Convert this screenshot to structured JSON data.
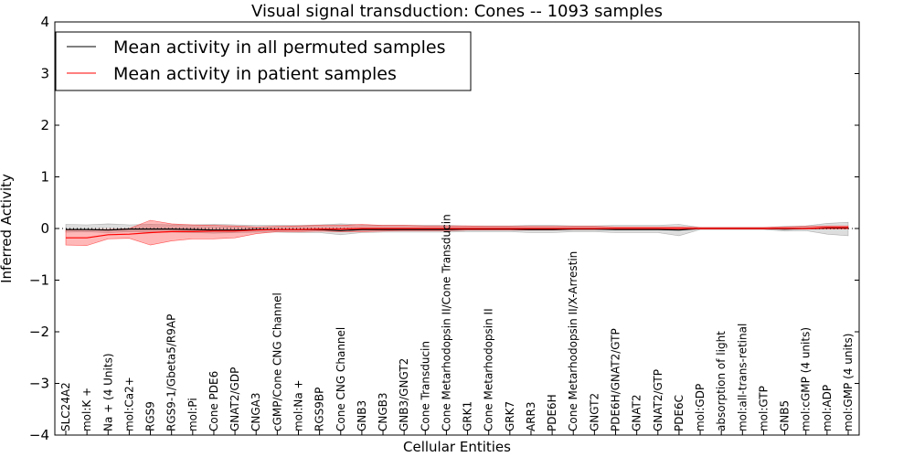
{
  "chart_data": {
    "type": "line",
    "title": "Visual signal transduction: Cones -- 1093 samples",
    "xlabel": "Cellular Entities",
    "ylabel": "Inferred Activity",
    "ylim": [
      -4,
      4
    ],
    "yticks": [
      -4,
      -3,
      -2,
      -1,
      0,
      1,
      2,
      3,
      4
    ],
    "ytick_labels": [
      "−4",
      "−3",
      "−2",
      "−1",
      "0",
      "1",
      "2",
      "3",
      "4"
    ],
    "legend_position": "top-left",
    "categories": [
      "SLC24A2",
      "mol:K +",
      "Na + (4 Units)",
      "mol:Ca2+",
      "RGS9",
      "RGS9-1/Gbeta5/R9AP",
      "mol:Pi",
      "Cone PDE6",
      "GNAT2/GDP",
      "CNGA3",
      "cGMP/Cone CNG Channel",
      "mol:Na +",
      "RGS9BP",
      "Cone CNG Channel",
      "GNB3",
      "CNGB3",
      "GNB3/GNGT2",
      "Cone Transducin",
      "Cone Metarhodopsin II/Cone Transducin",
      "GRK1",
      "Cone Metarhodopsin II",
      "GRK7",
      "ARR3",
      "PDE6H",
      "Cone Metarhodopsin II/X-Arrestin",
      "GNGT2",
      "PDE6H/GNAT2/GTP",
      "GNAT2",
      "GNAT2/GTP",
      "PDE6C",
      "mol:GDP",
      "absorption of light",
      "mol:all-trans-retinal",
      "mol:GTP",
      "GNB5",
      "mol:cGMP (4 units)",
      "mol:ADP",
      "mol:GMP (4 units)"
    ],
    "series": [
      {
        "name": "Mean activity in all permuted samples",
        "color": "#000000",
        "values": [
          -0.02,
          -0.02,
          -0.03,
          -0.01,
          -0.01,
          -0.01,
          -0.02,
          -0.03,
          -0.03,
          -0.02,
          -0.02,
          -0.02,
          -0.02,
          -0.04,
          -0.02,
          -0.02,
          -0.02,
          -0.02,
          -0.02,
          -0.01,
          -0.01,
          -0.01,
          -0.02,
          -0.02,
          -0.01,
          -0.01,
          -0.02,
          -0.02,
          -0.02,
          -0.03,
          0.0,
          0.0,
          0.0,
          0.0,
          -0.01,
          0.0,
          0.01,
          0.01
        ],
        "band_lower": [
          -0.07,
          -0.06,
          -0.08,
          -0.06,
          -0.07,
          -0.07,
          -0.08,
          -0.09,
          -0.08,
          -0.07,
          -0.07,
          -0.08,
          -0.08,
          -0.12,
          -0.08,
          -0.07,
          -0.07,
          -0.07,
          -0.07,
          -0.06,
          -0.06,
          -0.06,
          -0.08,
          -0.08,
          -0.06,
          -0.06,
          -0.08,
          -0.08,
          -0.08,
          -0.14,
          -0.02,
          -0.02,
          -0.02,
          -0.02,
          -0.05,
          -0.04,
          -0.11,
          -0.14
        ],
        "band_upper": [
          0.08,
          0.07,
          0.09,
          0.07,
          0.08,
          0.07,
          0.07,
          0.08,
          0.07,
          0.06,
          0.06,
          0.06,
          0.07,
          0.09,
          0.07,
          0.06,
          0.06,
          0.06,
          0.06,
          0.05,
          0.05,
          0.05,
          0.06,
          0.06,
          0.05,
          0.05,
          0.06,
          0.06,
          0.06,
          0.08,
          0.02,
          0.02,
          0.02,
          0.02,
          0.04,
          0.05,
          0.1,
          0.12
        ]
      },
      {
        "name": "Mean activity in patient samples",
        "color": "#ff0000",
        "values": [
          -0.18,
          -0.18,
          -0.12,
          -0.11,
          -0.08,
          -0.06,
          -0.06,
          -0.05,
          -0.05,
          -0.03,
          -0.02,
          -0.02,
          -0.01,
          -0.01,
          0.0,
          0.0,
          0.0,
          0.0,
          0.0,
          0.0,
          0.0,
          0.0,
          0.0,
          0.0,
          0.0,
          0.0,
          0.0,
          0.0,
          0.0,
          0.0,
          0.0,
          0.0,
          0.0,
          0.0,
          0.0,
          0.0,
          0.02,
          0.02
        ],
        "band_lower": [
          -0.32,
          -0.33,
          -0.2,
          -0.19,
          -0.32,
          -0.24,
          -0.2,
          -0.2,
          -0.18,
          -0.1,
          -0.06,
          -0.06,
          -0.05,
          -0.06,
          -0.06,
          -0.05,
          -0.04,
          -0.04,
          -0.04,
          -0.03,
          -0.03,
          -0.03,
          -0.03,
          -0.03,
          -0.02,
          -0.02,
          -0.02,
          -0.02,
          -0.02,
          -0.02,
          -0.01,
          -0.01,
          -0.01,
          -0.01,
          -0.01,
          -0.01,
          -0.01,
          -0.01
        ],
        "band_upper": [
          -0.03,
          -0.02,
          -0.02,
          0.0,
          0.16,
          0.09,
          0.07,
          0.06,
          0.05,
          0.03,
          0.04,
          0.05,
          0.06,
          0.06,
          0.08,
          0.06,
          0.06,
          0.05,
          0.05,
          0.05,
          0.04,
          0.04,
          0.04,
          0.04,
          0.04,
          0.04,
          0.03,
          0.03,
          0.03,
          0.03,
          0.02,
          0.02,
          0.02,
          0.02,
          0.03,
          0.04,
          0.05,
          0.05
        ]
      }
    ]
  }
}
